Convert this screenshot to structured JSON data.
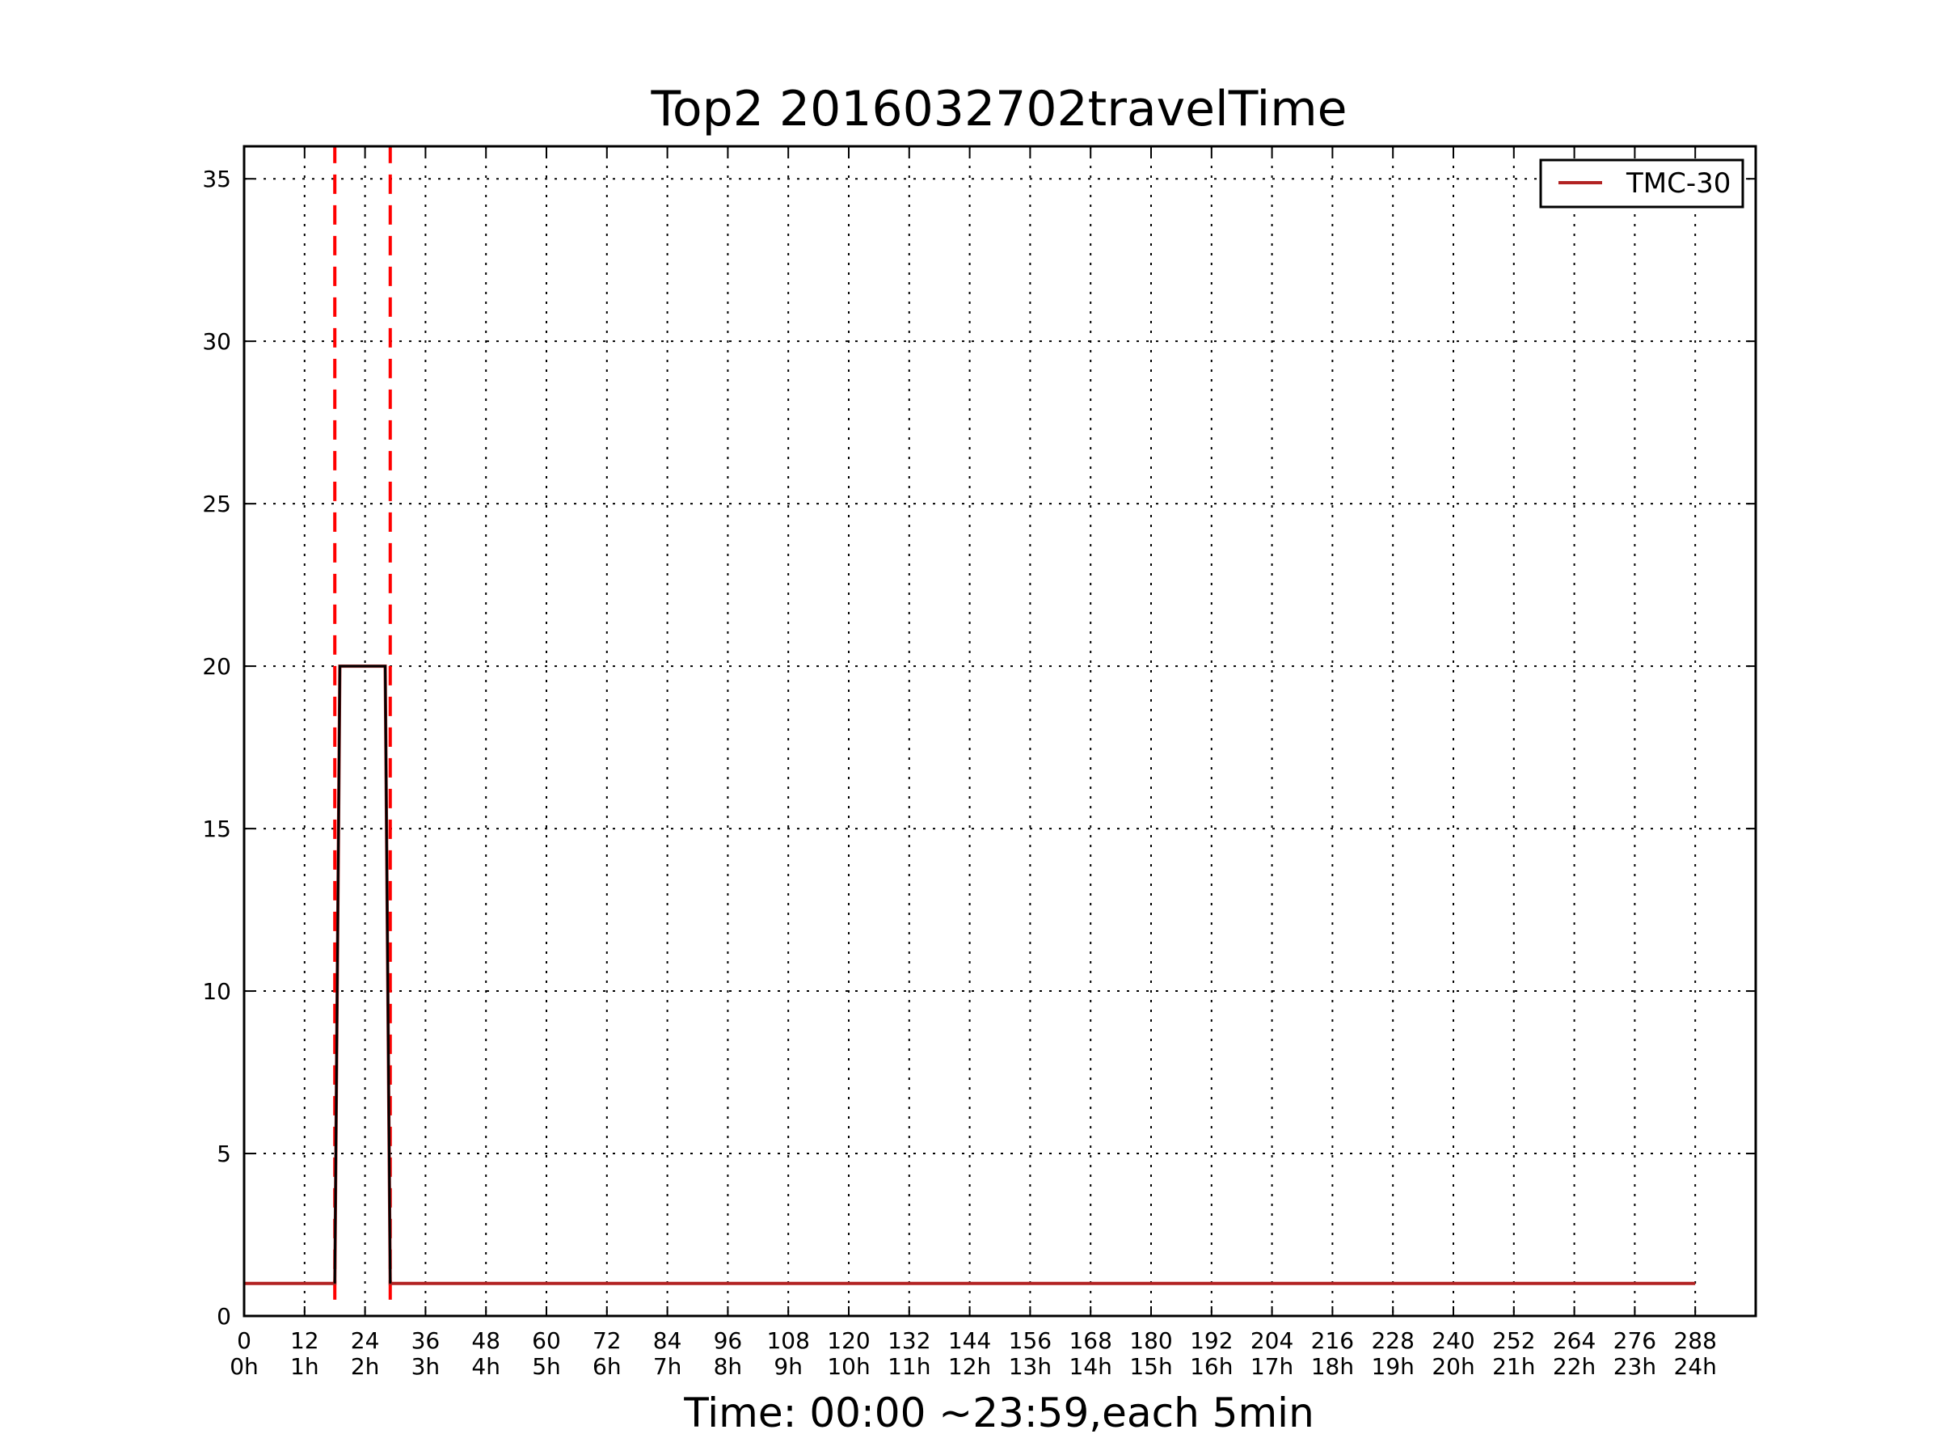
{
  "chart_data": {
    "type": "line",
    "title": "Top2 2016032702travelTime",
    "xlabel": "Time: 00:00 ~23:59,each 5min",
    "ylabel": "",
    "xlim": [
      0,
      300
    ],
    "ylim": [
      0,
      36
    ],
    "grid": true,
    "legend_position": "top-right",
    "x_ticks": [
      {
        "value": 0,
        "label": "0",
        "label2": "0h"
      },
      {
        "value": 12,
        "label": "12",
        "label2": "1h"
      },
      {
        "value": 24,
        "label": "24",
        "label2": "2h"
      },
      {
        "value": 36,
        "label": "36",
        "label2": "3h"
      },
      {
        "value": 48,
        "label": "48",
        "label2": "4h"
      },
      {
        "value": 60,
        "label": "60",
        "label2": "5h"
      },
      {
        "value": 72,
        "label": "72",
        "label2": "6h"
      },
      {
        "value": 84,
        "label": "84",
        "label2": "7h"
      },
      {
        "value": 96,
        "label": "96",
        "label2": "8h"
      },
      {
        "value": 108,
        "label": "108",
        "label2": "9h"
      },
      {
        "value": 120,
        "label": "120",
        "label2": "10h"
      },
      {
        "value": 132,
        "label": "132",
        "label2": "11h"
      },
      {
        "value": 144,
        "label": "144",
        "label2": "12h"
      },
      {
        "value": 156,
        "label": "156",
        "label2": "13h"
      },
      {
        "value": 168,
        "label": "168",
        "label2": "14h"
      },
      {
        "value": 180,
        "label": "180",
        "label2": "15h"
      },
      {
        "value": 192,
        "label": "192",
        "label2": "16h"
      },
      {
        "value": 204,
        "label": "204",
        "label2": "17h"
      },
      {
        "value": 216,
        "label": "216",
        "label2": "18h"
      },
      {
        "value": 228,
        "label": "228",
        "label2": "19h"
      },
      {
        "value": 240,
        "label": "240",
        "label2": "20h"
      },
      {
        "value": 252,
        "label": "252",
        "label2": "21h"
      },
      {
        "value": 264,
        "label": "264",
        "label2": "22h"
      },
      {
        "value": 276,
        "label": "276",
        "label2": "23h"
      },
      {
        "value": 288,
        "label": "288",
        "label2": "24h"
      }
    ],
    "y_ticks": [
      {
        "value": 0,
        "label": "0"
      },
      {
        "value": 5,
        "label": "5"
      },
      {
        "value": 10,
        "label": "10"
      },
      {
        "value": 15,
        "label": "15"
      },
      {
        "value": 20,
        "label": "20"
      },
      {
        "value": 25,
        "label": "25"
      },
      {
        "value": 30,
        "label": "30"
      },
      {
        "value": 35,
        "label": "35"
      }
    ],
    "series": [
      {
        "name": "TMC-30",
        "color": "#b22222",
        "x": [
          0,
          18,
          19,
          28,
          29,
          288
        ],
        "y": [
          1,
          1,
          20,
          20,
          1,
          1
        ]
      },
      {
        "name": "",
        "color": "#000000",
        "x": [
          18,
          19,
          28,
          29
        ],
        "y": [
          1,
          20,
          20,
          1
        ]
      }
    ],
    "vlines": [
      {
        "x": 18,
        "color": "#ff0000",
        "style": "dashed",
        "y_range": [
          0.5,
          36
        ]
      },
      {
        "x": 29,
        "color": "#ff0000",
        "style": "dashed",
        "y_range": [
          0.5,
          36
        ]
      }
    ]
  }
}
